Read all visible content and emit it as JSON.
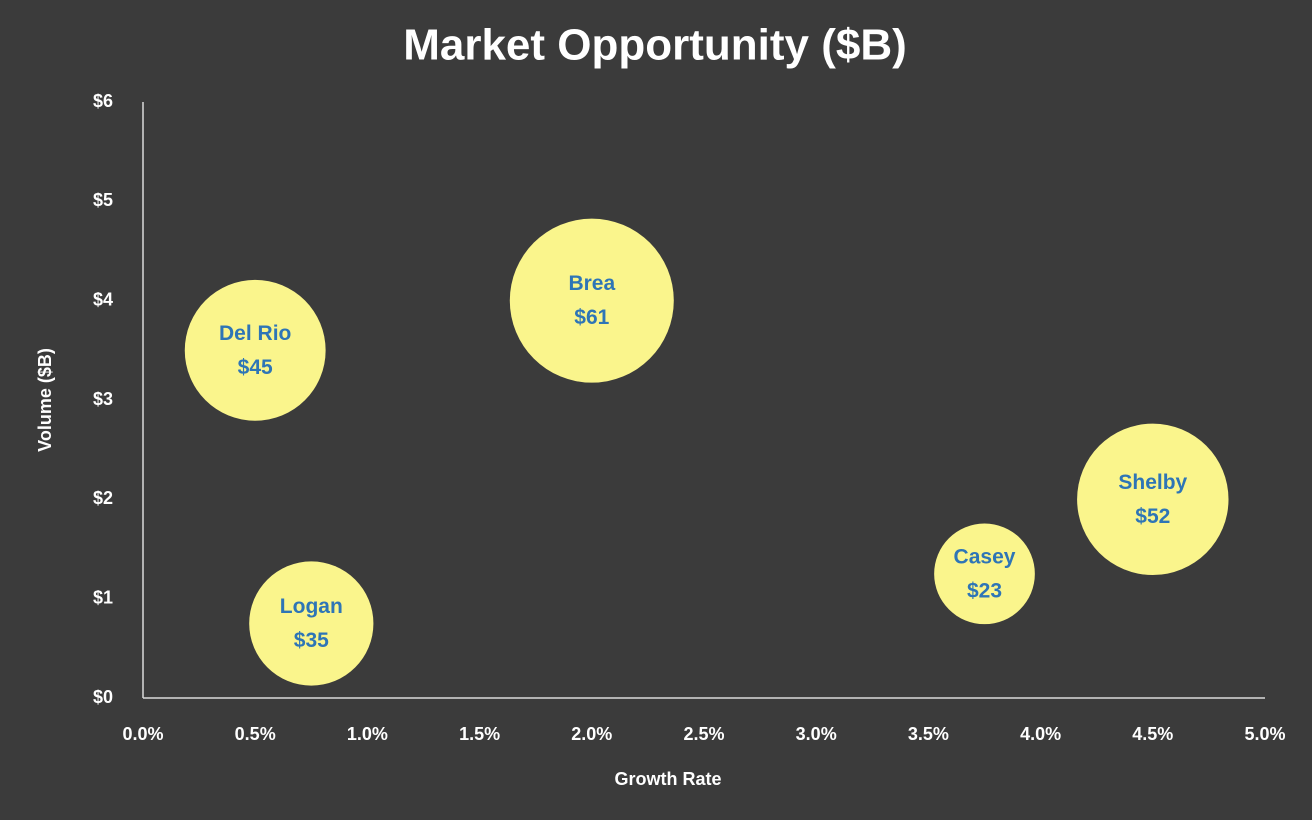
{
  "chart_data": {
    "type": "bubble",
    "title": "Market Opportunity ($B)",
    "x_label": "Growth Rate",
    "y_label": "Volume ($B)",
    "labels": [
      "Del Rio",
      "Logan",
      "Brea",
      "Casey",
      "Shelby"
    ],
    "x": [
      0.5,
      0.75,
      2.0,
      3.75,
      4.5
    ],
    "values": [
      3.5,
      0.75,
      4.0,
      1.25,
      2.0
    ],
    "sizes": [
      45,
      35,
      61,
      23,
      52
    ],
    "value_labels": [
      "$45",
      "$35",
      "$61",
      "$23",
      "$52"
    ],
    "color": "#faf58c",
    "label_color": "#2e75b6",
    "xlim": [
      0,
      5
    ],
    "xticks": [
      {
        "value": 0,
        "label": "0.0%"
      },
      {
        "value": 0.5,
        "label": "0.5%"
      },
      {
        "value": 1,
        "label": "1.0%"
      },
      {
        "value": 1.5,
        "label": "1.5%"
      },
      {
        "value": 2,
        "label": "2.0%"
      },
      {
        "value": 2.5,
        "label": "2.5%"
      },
      {
        "value": 3,
        "label": "3.0%"
      },
      {
        "value": 3.5,
        "label": "3.5%"
      },
      {
        "value": 4,
        "label": "4.0%"
      },
      {
        "value": 4.5,
        "label": "4.5%"
      },
      {
        "value": 5,
        "label": "5.0%"
      }
    ],
    "ylim": [
      0,
      6
    ],
    "yticks": [
      {
        "value": 0,
        "label": "$0"
      },
      {
        "value": 1,
        "label": "$1"
      },
      {
        "value": 2,
        "label": "$2"
      },
      {
        "value": 3,
        "label": "$3"
      },
      {
        "value": 4,
        "label": "$4"
      },
      {
        "value": 5,
        "label": "$5"
      },
      {
        "value": 6,
        "label": "$6"
      }
    ],
    "grid": false
  }
}
